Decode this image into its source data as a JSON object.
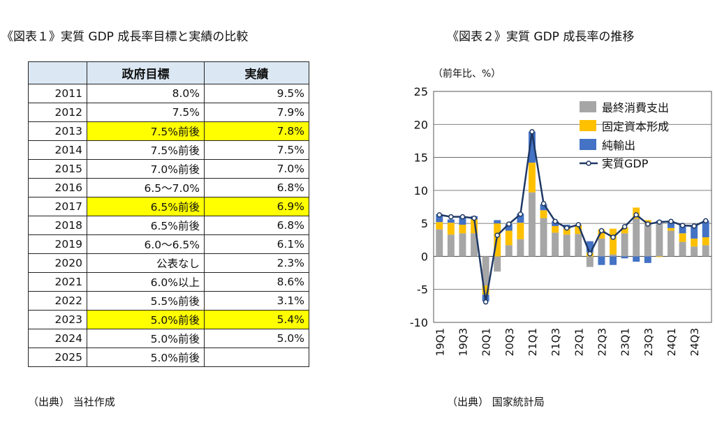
{
  "left": {
    "title": "《図表１》実質 GDP 成長率目標と実績の比較",
    "source": "（出典） 当社作成",
    "table": {
      "headers": [
        "",
        "政府目標",
        "実績"
      ],
      "rows": [
        {
          "year": "2011",
          "target": "8.0%",
          "actual": "9.5%",
          "highlight": false
        },
        {
          "year": "2012",
          "target": "7.5%",
          "actual": "7.9%",
          "highlight": false
        },
        {
          "year": "2013",
          "target": "7.5%前後",
          "actual": "7.8%",
          "highlight": true
        },
        {
          "year": "2014",
          "target": "7.5%前後",
          "actual": "7.5%",
          "highlight": false
        },
        {
          "year": "2015",
          "target": "7.0%前後",
          "actual": "7.0%",
          "highlight": false
        },
        {
          "year": "2016",
          "target": "6.5～7.0%",
          "actual": "6.8%",
          "highlight": false
        },
        {
          "year": "2017",
          "target": "6.5%前後",
          "actual": "6.9%",
          "highlight": true
        },
        {
          "year": "2018",
          "target": "6.5%前後",
          "actual": "6.8%",
          "highlight": false
        },
        {
          "year": "2019",
          "target": "6.0～6.5%",
          "actual": "6.1%",
          "highlight": false
        },
        {
          "year": "2020",
          "target": "公表なし",
          "actual": "2.3%",
          "highlight": false
        },
        {
          "year": "2021",
          "target": "6.0%以上",
          "actual": "8.6%",
          "highlight": false
        },
        {
          "year": "2022",
          "target": "5.5%前後",
          "actual": "3.1%",
          "highlight": false
        },
        {
          "year": "2023",
          "target": "5.0%前後",
          "actual": "5.4%",
          "highlight": true
        },
        {
          "year": "2024",
          "target": "5.0%前後",
          "actual": "5.0%",
          "highlight": false
        },
        {
          "year": "2025",
          "target": "5.0%前後",
          "actual": "",
          "highlight": false
        }
      ],
      "highlight_color": "#ffff00",
      "header_color": "#dbe8f3"
    }
  },
  "right": {
    "title": "《図表２》実質 GDP 成長率の推移",
    "source": "（出典） 国家統計局"
  },
  "chart_data": {
    "type": "bar",
    "stacked": true,
    "unit": "（前年比、%）",
    "ylim": [
      -10,
      25
    ],
    "yticks": [
      25,
      20,
      15,
      10,
      5,
      0,
      -5,
      -10
    ],
    "categories": [
      "19Q1",
      "19Q2",
      "19Q3",
      "19Q4",
      "20Q1",
      "20Q2",
      "20Q3",
      "20Q4",
      "21Q1",
      "21Q2",
      "21Q3",
      "21Q4",
      "22Q1",
      "22Q2",
      "22Q3",
      "22Q4",
      "23Q1",
      "23Q2",
      "23Q3",
      "23Q4",
      "24Q1",
      "24Q2",
      "24Q3",
      "24Q4"
    ],
    "tick_labels": [
      "19Q1",
      "19Q3",
      "20Q1",
      "20Q3",
      "21Q1",
      "21Q3",
      "22Q1",
      "22Q3",
      "23Q1",
      "23Q3",
      "24Q1",
      "24Q3"
    ],
    "legend_position": "top-right",
    "series": [
      {
        "name": "最終消費支出",
        "color": "#a6a6a6",
        "values": [
          4.1,
          3.3,
          3.5,
          3.5,
          -4.4,
          -2.3,
          1.7,
          2.6,
          9.7,
          5.8,
          3.6,
          3.3,
          3.4,
          -1.6,
          2.7,
          0.3,
          3.5,
          5.7,
          5.0,
          5.2,
          3.9,
          2.2,
          1.5,
          1.7
        ]
      },
      {
        "name": "固定資本形成",
        "color": "#ffc000",
        "values": [
          1.1,
          1.8,
          1.3,
          2.1,
          -1.4,
          5.0,
          2.2,
          2.5,
          4.5,
          1.2,
          1.0,
          0.9,
          1.3,
          0.6,
          1.4,
          3.9,
          0.9,
          1.7,
          0.5,
          -0.1,
          0.4,
          1.3,
          1.2,
          1.2
        ]
      },
      {
        "name": "純輸出",
        "color": "#4472c4",
        "values": [
          1.2,
          0.5,
          1.2,
          0.5,
          -1.0,
          0.5,
          1.0,
          1.4,
          4.7,
          0.9,
          0.7,
          0.6,
          0.1,
          1.7,
          -1.3,
          -1.3,
          -0.3,
          -0.8,
          -1.0,
          0.2,
          1.0,
          1.3,
          2.0,
          2.5
        ]
      }
    ],
    "line": {
      "name": "実質GDP",
      "color": "#1f3864",
      "values": [
        6.3,
        6.0,
        6.0,
        5.8,
        -6.9,
        3.2,
        4.9,
        6.4,
        18.9,
        8.0,
        5.3,
        4.3,
        4.8,
        0.4,
        3.9,
        2.9,
        4.5,
        6.3,
        4.9,
        5.2,
        5.3,
        4.7,
        4.6,
        5.4
      ]
    }
  }
}
